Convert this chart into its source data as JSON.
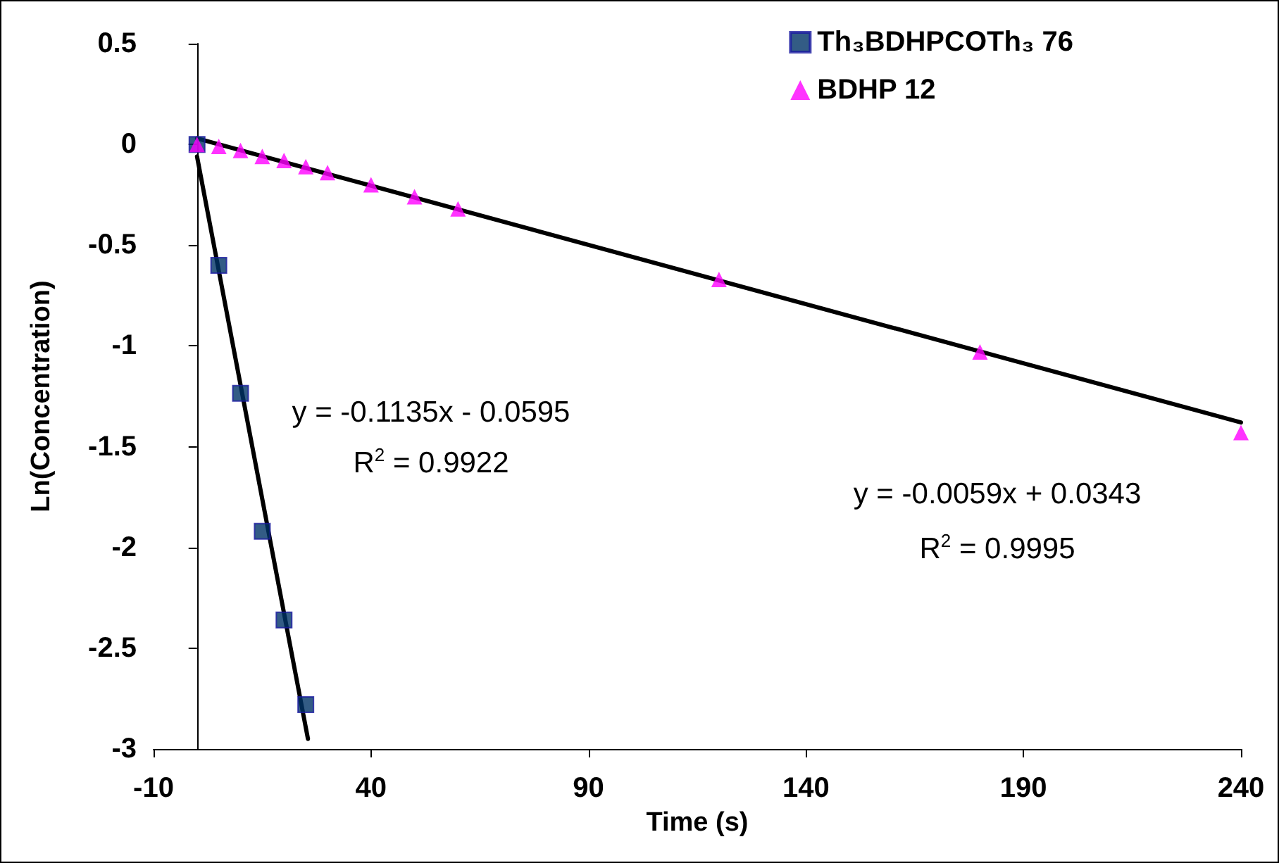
{
  "chart_data": {
    "type": "scatter",
    "xlabel": "Time (s)",
    "ylabel": "Ln(Concentration)",
    "xlim": [
      -10,
      240
    ],
    "xticks": [
      -10,
      40,
      90,
      140,
      190,
      240
    ],
    "ylim": [
      -3,
      0.5
    ],
    "yticks": [
      -3,
      -2.5,
      -2,
      -1.5,
      -1,
      -0.5,
      0,
      0.5
    ],
    "grid": false,
    "legend": "top right",
    "series": [
      {
        "name": "Th₃BDHPCOTh₃ 76",
        "color": "#003366",
        "marker": "square",
        "x": [
          0,
          5,
          10,
          15,
          20,
          25
        ],
        "values": [
          0,
          -0.6,
          -1.235,
          -1.92,
          -2.36,
          -2.78
        ]
      },
      {
        "name": "BDHP 12",
        "color": "#ff00ff",
        "marker": "triangle",
        "x": [
          0,
          5,
          10,
          15,
          20,
          25,
          30,
          40,
          50,
          60,
          120,
          180,
          240
        ],
        "values": [
          0,
          -0.01,
          -0.03,
          -0.06,
          -0.08,
          -0.11,
          -0.14,
          -0.2,
          -0.26,
          -0.32,
          -0.67,
          -1.03,
          -1.43
        ]
      },
      {
        "type": "line",
        "color": "#000000",
        "marker": "none",
        "x": [
          0,
          25.5
        ],
        "values": [
          -0.06,
          -2.95
        ]
      },
      {
        "type": "line",
        "color": "#000000",
        "marker": "none",
        "x": [
          0,
          240
        ],
        "values": [
          0.03,
          -1.38
        ]
      }
    ],
    "annotations": [
      "y = -0.1135x - 0.0595",
      "R$^{2}$ = 0.9922",
      "y = -0.0059x + 0.0343",
      "R$^{2}$ = 0.9995"
    ]
  }
}
